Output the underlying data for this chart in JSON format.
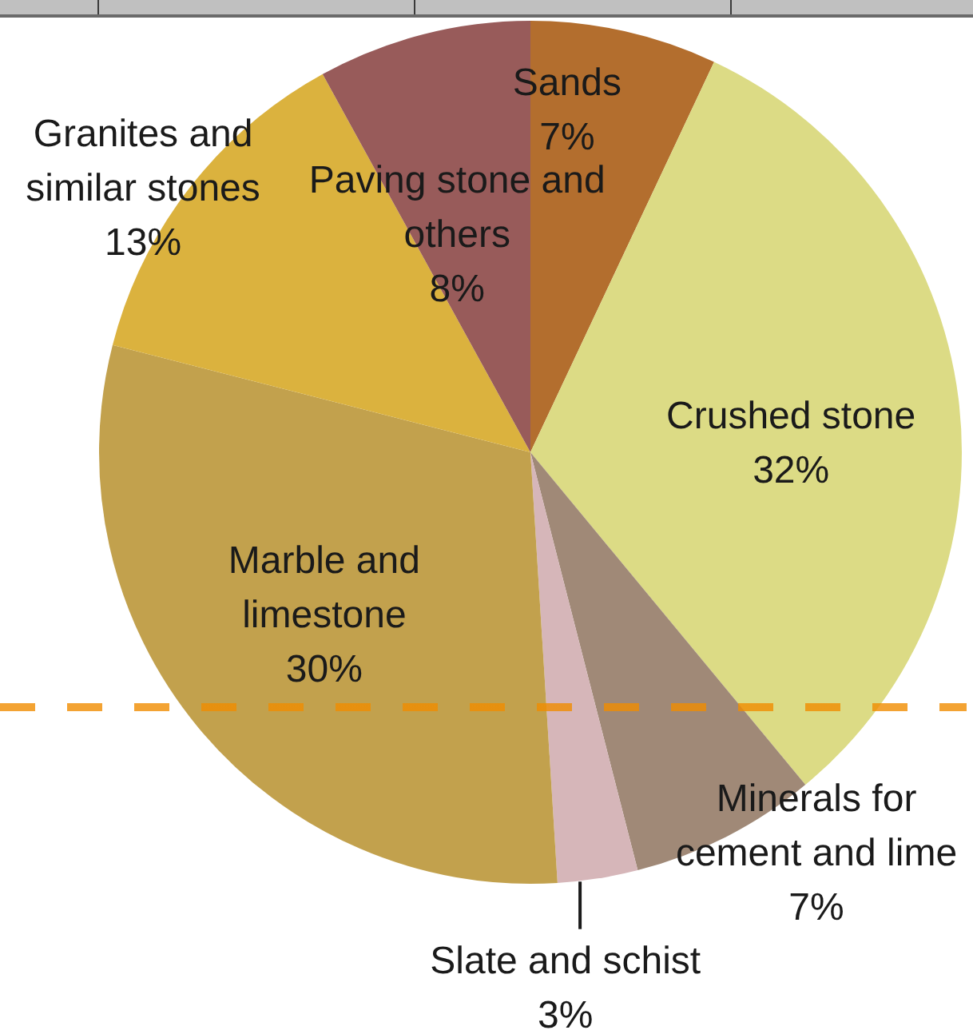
{
  "chart_data": {
    "type": "pie",
    "categories": [
      "Sands",
      "Crushed stone",
      "Minerals for cement and lime",
      "Slate and schist",
      "Marble and limestone",
      "Granites and similar stones",
      "Paving stone and others"
    ],
    "values": [
      7,
      32,
      7,
      3,
      30,
      13,
      8
    ],
    "value_labels": [
      "7%",
      "32%",
      "7%",
      "3%",
      "30%",
      "13%",
      "8%"
    ],
    "colors": [
      "#b36e2e",
      "#dcdb85",
      "#a08977",
      "#d6b6b9",
      "#c2a14d",
      "#dbb23e",
      "#985b5a"
    ]
  }
}
